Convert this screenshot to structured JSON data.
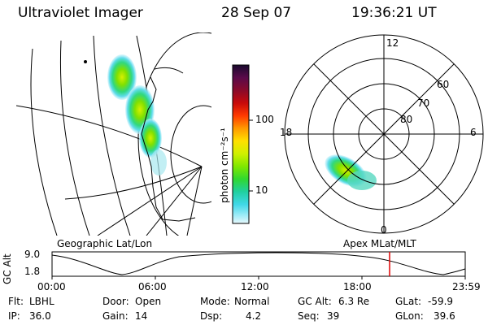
{
  "header": {
    "instrument": "Ultraviolet Imager",
    "date": "28 Sep 07",
    "time": "19:36:21 UT"
  },
  "colorbar": {
    "label": "photon cm⁻²s⁻¹",
    "ticks": [
      "100",
      "10"
    ],
    "colors": [
      "#1a0a2e",
      "#5a0a4a",
      "#8a0a2a",
      "#c80a0a",
      "#ff3a00",
      "#ff9a00",
      "#ffe000",
      "#d0f000",
      "#80e800",
      "#30d830",
      "#20d0a0",
      "#40d8e8",
      "#a0ecf8",
      "#e8f8fc"
    ]
  },
  "left_map": {
    "label": "Geographic Lat/Lon"
  },
  "right_polar": {
    "label": "Apex MLat/MLT",
    "mlt_labels": {
      "top": "12",
      "left": "18",
      "right": "6",
      "bottom": "0"
    },
    "lat_labels": [
      "60",
      "70",
      "80"
    ]
  },
  "altitude_panel": {
    "axis_label": "GC Alt",
    "y_ticks": [
      "9.0",
      "1.8"
    ],
    "x_ticks": [
      "00:00",
      "06:00",
      "12:00",
      "18:00",
      "23:59"
    ],
    "current_time_fraction": 0.817
  },
  "info": {
    "filter_label": "Flt:",
    "filter": "LBHL",
    "ip_label": "IP:",
    "ip": "36.0",
    "door_label": "Door:",
    "door": "Open",
    "gain_label": "Gain:",
    "gain": "14",
    "mode_label": "Mode:",
    "mode": "Normal",
    "dsp_label": "Dsp:",
    "dsp": "4.2",
    "gcalt_label": "GC Alt:",
    "gcalt": "6.3 Re",
    "seq_label": "Seq:",
    "seq": "39",
    "glat_label": "GLat:",
    "glat": "-59.9",
    "glon_label": "GLon:",
    "glon": "39.6"
  }
}
